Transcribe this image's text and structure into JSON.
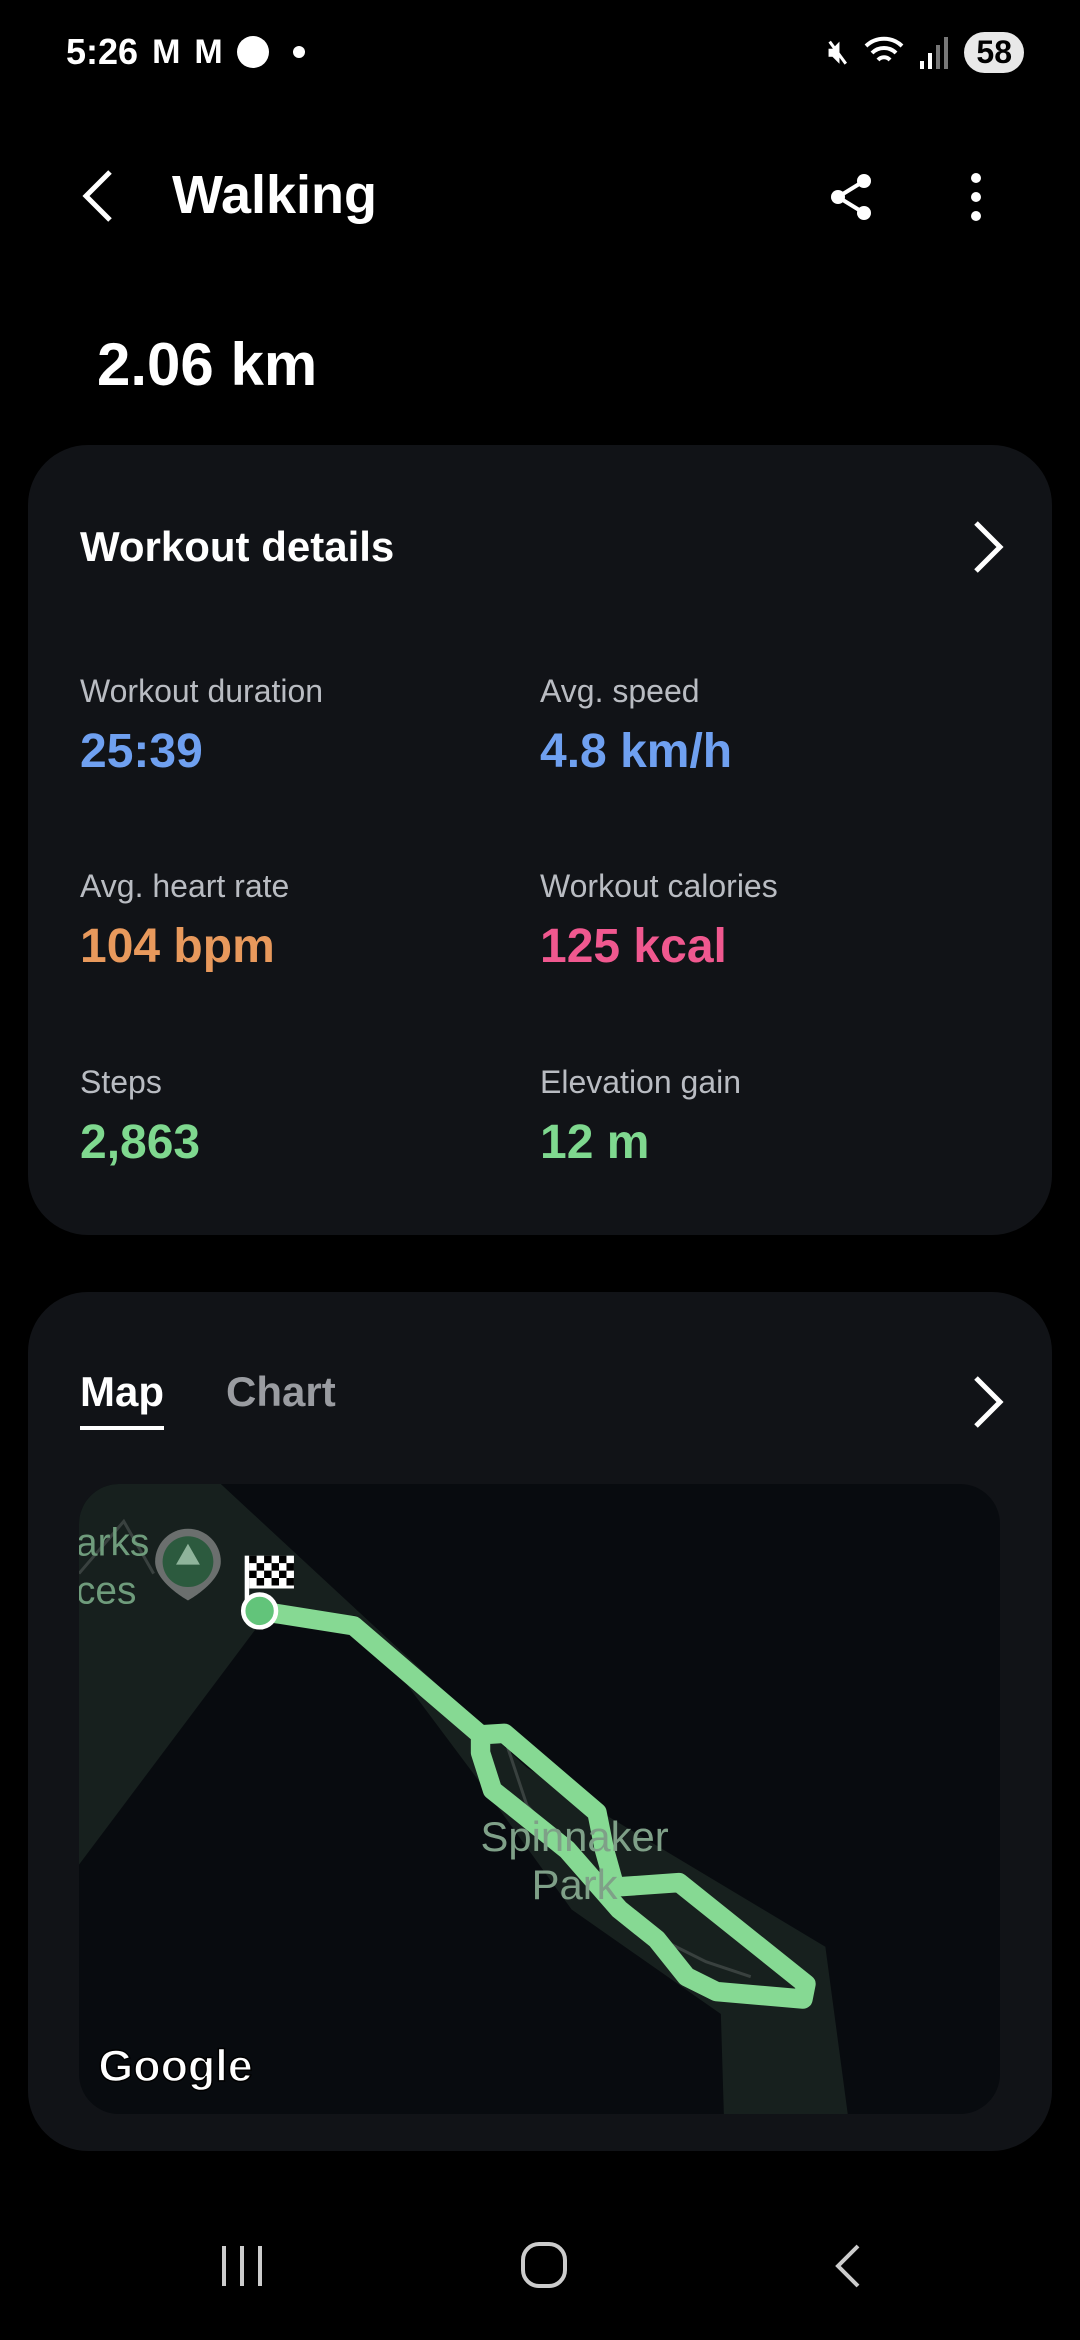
{
  "status_bar": {
    "time": "5:26",
    "notifications": [
      "gmail-icon",
      "gmail-icon",
      "messenger-icon",
      "dot-icon"
    ],
    "battery": "58"
  },
  "header": {
    "title": "Walking"
  },
  "distance": "2.06 km",
  "workout_details": {
    "title": "Workout details",
    "stats": [
      {
        "label": "Workout duration",
        "value": "25:39",
        "color": "#6fa0f0"
      },
      {
        "label": "Avg. speed",
        "value": "4.8 km/h",
        "color": "#6fa0f0"
      },
      {
        "label": "Avg. heart rate",
        "value": "104 bpm",
        "color": "#e8995c"
      },
      {
        "label": "Workout calories",
        "value": "125 kcal",
        "color": "#f0588f"
      },
      {
        "label": "Steps",
        "value": "2,863",
        "color": "#7fd88f"
      },
      {
        "label": "Elevation gain",
        "value": "12 m",
        "color": "#7fd88f"
      }
    ]
  },
  "route": {
    "tabs": [
      {
        "label": "Map",
        "active": true
      },
      {
        "label": "Chart",
        "active": false
      }
    ],
    "map": {
      "labels": [
        "arks",
        "ces",
        "Spinnaker",
        "Park"
      ],
      "logo": "Google",
      "route_color": "#86d993"
    }
  }
}
